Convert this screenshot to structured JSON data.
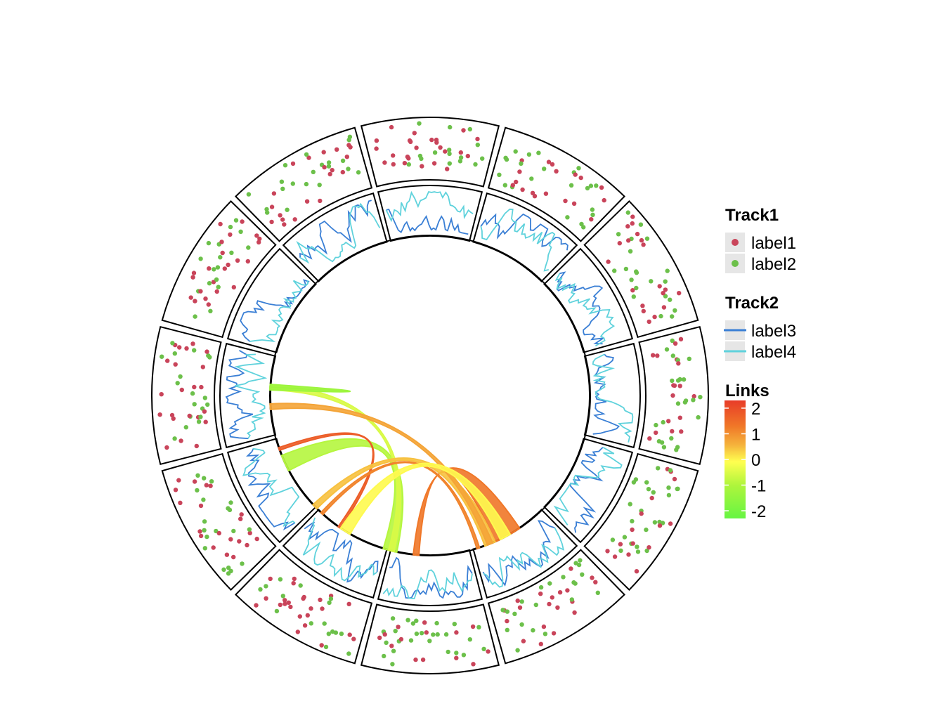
{
  "chart_data": {
    "type": "circos",
    "sectors": 12,
    "tracks": [
      {
        "name": "Track1",
        "kind": "scatter",
        "series": [
          {
            "name": "label1",
            "color": "#c9445a"
          },
          {
            "name": "label2",
            "color": "#6cc04a"
          }
        ]
      },
      {
        "name": "Track2",
        "kind": "line",
        "series": [
          {
            "name": "label3",
            "color": "#3a7fd5"
          },
          {
            "name": "label4",
            "color": "#5fd2dc"
          }
        ]
      }
    ],
    "links": {
      "name": "Links",
      "scale": {
        "min": -2.3,
        "max": 2.3,
        "ticks": [
          2,
          1,
          0,
          -1,
          -2
        ]
      },
      "colors": [
        "#66f543",
        "#aef53c",
        "#ffff50",
        "#f5b43c",
        "#f07828",
        "#e83c28"
      ],
      "items": [
        {
          "from": [
            102,
            107
          ],
          "to": [
            152,
            158
          ],
          "value": -1.3
        },
        {
          "from": [
            103,
            105
          ],
          "to": [
            182,
            184
          ],
          "value": -0.9
        },
        {
          "from": [
            124,
            125
          ],
          "to": [
            160,
            161
          ],
          "value": 1.8
        },
        {
          "from": [
            56,
            66
          ],
          "to": [
            94,
            96
          ],
          "value": 1.4
        },
        {
          "from": [
            72,
            73
          ],
          "to": [
            132,
            133
          ],
          "value": 1.2
        },
        {
          "from": [
            66,
            70
          ],
          "to": [
            135,
            137
          ],
          "value": 0.3
        },
        {
          "from": [
            67,
            69
          ],
          "to": [
            175,
            177
          ],
          "value": 0.7
        },
        {
          "from": [
            183,
            184
          ],
          "to": [
            182,
            183
          ],
          "value": -1.6
        },
        {
          "from": [
            60,
            64
          ],
          "to": [
            120,
            124
          ],
          "value": -0.4
        }
      ]
    }
  },
  "legend": {
    "track1_title": "Track1",
    "track1_items": [
      "label1",
      "label2"
    ],
    "track2_title": "Track2",
    "track2_items": [
      "label3",
      "label4"
    ],
    "links_title": "Links",
    "links_ticks": [
      "2",
      "1",
      "0",
      "-1",
      "-2"
    ]
  }
}
